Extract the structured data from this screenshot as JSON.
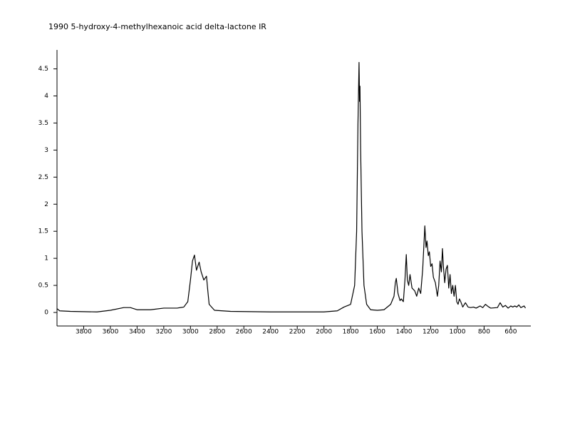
{
  "chart_data": {
    "type": "line",
    "title": "1990  5-hydroxy-4-methylhexanoic acid delta-lactone  IR",
    "color": "#000000",
    "x": [
      4000,
      3980,
      3900,
      3700,
      3600,
      3500,
      3450,
      3400,
      3300,
      3200,
      3100,
      3050,
      3020,
      3000,
      2985,
      2970,
      2955,
      2935,
      2920,
      2900,
      2880,
      2870,
      2860,
      2820,
      2700,
      2400,
      2000,
      1900,
      1850,
      1800,
      1770,
      1755,
      1745,
      1737,
      1733,
      1730,
      1725,
      1715,
      1700,
      1680,
      1650,
      1600,
      1550,
      1500,
      1475,
      1465,
      1458,
      1445,
      1430,
      1420,
      1405,
      1393,
      1383,
      1375,
      1365,
      1355,
      1340,
      1320,
      1305,
      1290,
      1275,
      1260,
      1244,
      1235,
      1228,
      1218,
      1210,
      1200,
      1190,
      1180,
      1165,
      1150,
      1140,
      1130,
      1120,
      1112,
      1105,
      1095,
      1085,
      1075,
      1065,
      1055,
      1045,
      1035,
      1025,
      1015,
      1005,
      995,
      985,
      975,
      960,
      940,
      920,
      900,
      880,
      860,
      830,
      810,
      790,
      770,
      750,
      700,
      680,
      660,
      640,
      620,
      600,
      585,
      570,
      555,
      540,
      525,
      500,
      490
    ],
    "values": [
      0.07,
      0.03,
      0.02,
      0.01,
      0.04,
      0.09,
      0.09,
      0.05,
      0.05,
      0.08,
      0.08,
      0.1,
      0.2,
      0.6,
      0.95,
      1.06,
      0.78,
      0.93,
      0.75,
      0.6,
      0.67,
      0.4,
      0.15,
      0.04,
      0.02,
      0.01,
      0.01,
      0.03,
      0.1,
      0.15,
      0.5,
      1.5,
      3.5,
      4.62,
      3.9,
      4.18,
      3.0,
      1.5,
      0.5,
      0.15,
      0.05,
      0.04,
      0.05,
      0.15,
      0.3,
      0.55,
      0.63,
      0.35,
      0.22,
      0.25,
      0.2,
      0.6,
      1.07,
      0.6,
      0.5,
      0.7,
      0.45,
      0.4,
      0.3,
      0.45,
      0.35,
      0.8,
      1.6,
      1.2,
      1.32,
      1.05,
      1.12,
      0.85,
      0.9,
      0.65,
      0.55,
      0.3,
      0.5,
      0.95,
      0.75,
      1.18,
      0.85,
      0.55,
      0.8,
      0.87,
      0.45,
      0.7,
      0.35,
      0.5,
      0.3,
      0.5,
      0.2,
      0.15,
      0.25,
      0.2,
      0.1,
      0.18,
      0.1,
      0.09,
      0.1,
      0.08,
      0.12,
      0.09,
      0.15,
      0.11,
      0.08,
      0.09,
      0.18,
      0.1,
      0.13,
      0.08,
      0.12,
      0.1,
      0.12,
      0.1,
      0.14,
      0.09,
      0.12,
      0.08
    ],
    "xlim": [
      4000,
      450
    ],
    "xticks": [
      3800,
      3600,
      3400,
      3200,
      3000,
      2800,
      2600,
      2400,
      2200,
      2000,
      1800,
      1600,
      1400,
      1200,
      1000,
      800,
      600
    ],
    "ylim": [
      -0.25,
      4.85
    ],
    "yticks": [
      0,
      0.5,
      1,
      1.5,
      2,
      2.5,
      3,
      3.5,
      4,
      4.5
    ]
  }
}
